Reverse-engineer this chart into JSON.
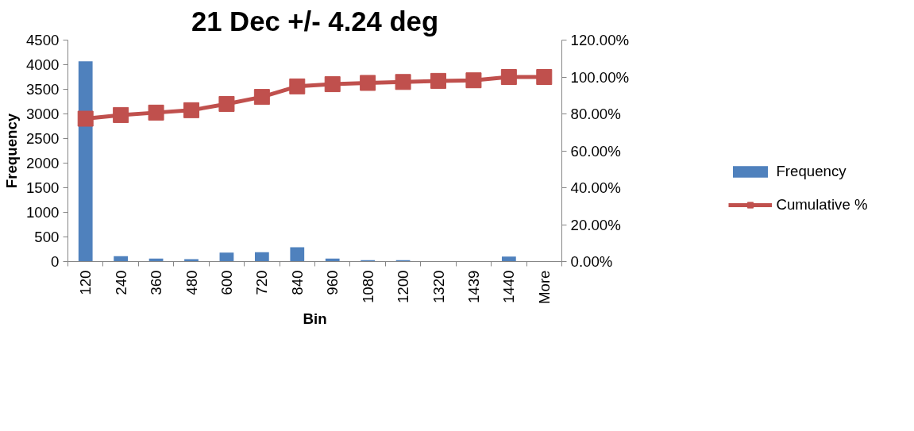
{
  "chart_data": {
    "type": "bar",
    "title": "21 Dec +/- 4.24 deg",
    "xlabel": "Bin",
    "ylabel": "Frequency",
    "categories": [
      "120",
      "240",
      "360",
      "480",
      "600",
      "720",
      "840",
      "960",
      "1080",
      "1200",
      "1320",
      "1439",
      "1440",
      "More"
    ],
    "series": [
      {
        "name": "Frequency",
        "color": "#4f81bd",
        "values": [
          4070,
          110,
          60,
          50,
          180,
          190,
          290,
          60,
          30,
          30,
          10,
          0,
          100,
          0
        ]
      },
      {
        "name": "Cumulative %",
        "type": "line",
        "axis": "y2",
        "color": "#c0504d",
        "marker": "square",
        "values": [
          77.4,
          79.4,
          80.7,
          82.0,
          85.4,
          89.2,
          94.9,
          96.1,
          96.8,
          97.3,
          97.9,
          98.2,
          100,
          100
        ]
      }
    ],
    "ylim": [
      0,
      4500
    ],
    "yticks": [
      0,
      500,
      1000,
      1500,
      2000,
      2500,
      3000,
      3500,
      4000,
      4500
    ],
    "y2lim": [
      0,
      120
    ],
    "y2ticks": [
      {
        "value": 0,
        "label": "0.00%"
      },
      {
        "value": 20,
        "label": "20.00%"
      },
      {
        "value": 40,
        "label": "40.00%"
      },
      {
        "value": 60,
        "label": "60.00%"
      },
      {
        "value": 80,
        "label": "80.00%"
      },
      {
        "value": 100,
        "label": "100.00%"
      },
      {
        "value": 120,
        "label": "120.00%"
      }
    ],
    "grid": false,
    "legend": "right"
  }
}
